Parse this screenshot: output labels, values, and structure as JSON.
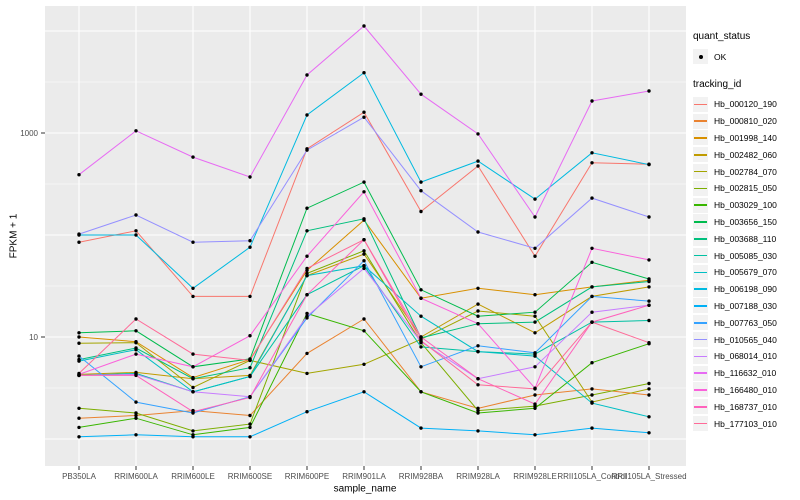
{
  "chart_data": {
    "type": "line",
    "title": "",
    "xlabel": "sample_name",
    "ylabel": "FPKM + 1",
    "y_scale": "log10",
    "y_ticks": [
      {
        "label": "1000",
        "value": 1000
      },
      {
        "label": "10",
        "value": 10
      }
    ],
    "ylim": [
      0.55,
      17000
    ],
    "grid": true,
    "legend_position": "right",
    "panel_color": "#EBEBEB",
    "grid_color": "#FFFFFF",
    "tick_color": "#333333",
    "tick_label_color": "#4D4D4D",
    "point_color": "#000000",
    "categories": [
      "PB350LA",
      "RRIM600LA",
      "RRIM600LE",
      "RRIM600SE",
      "RRIM600PE",
      "RRIM901LA",
      "RRIM928BA",
      "RRIM928LA",
      "RRIM928LE",
      "RRII105LA_Control",
      "RRII105LA_Stressed"
    ],
    "series": [
      {
        "name": "Hb_000120_190",
        "color": "#F8766D",
        "values": [
          85,
          110,
          25,
          25,
          700,
          1600,
          170,
          475,
          62,
          510,
          495
        ]
      },
      {
        "name": "Hb_000810_020",
        "color": "#EA8331",
        "values": [
          1.6,
          1.7,
          1.9,
          1.7,
          6.9,
          15,
          2.9,
          2.0,
          2.7,
          3.1,
          2.7
        ]
      },
      {
        "name": "Hb_001998_140",
        "color": "#D89000",
        "values": [
          10,
          9,
          4,
          6,
          45,
          140,
          24,
          30,
          26,
          31,
          36
        ]
      },
      {
        "name": "Hb_002482_060",
        "color": "#C09B00",
        "values": [
          4.3,
          4.5,
          3.9,
          4.2,
          40,
          65,
          10,
          21,
          11,
          25,
          31
        ]
      },
      {
        "name": "Hb_002784_070",
        "color": "#A3A500",
        "values": [
          8.7,
          8.8,
          3.2,
          5.9,
          4.4,
          5.4,
          9.5,
          18,
          16,
          2.3,
          3.1
        ]
      },
      {
        "name": "Hb_002815_050",
        "color": "#7CAE00",
        "values": [
          2.0,
          1.8,
          1.2,
          1.4,
          42,
          70,
          8.8,
          1.9,
          2.1,
          2.7,
          3.5
        ]
      },
      {
        "name": "Hb_003029_100",
        "color": "#39B600",
        "values": [
          1.3,
          1.6,
          1.1,
          1.3,
          17,
          11.5,
          2.9,
          1.8,
          2.0,
          5.6,
          8.6
        ]
      },
      {
        "name": "Hb_003656_150",
        "color": "#00BB4E",
        "values": [
          11,
          11.5,
          5.1,
          6.1,
          183,
          330,
          29,
          16,
          17.5,
          54,
          37
        ]
      },
      {
        "name": "Hb_003688_110",
        "color": "#00BF7D",
        "values": [
          6.0,
          7.8,
          3.9,
          5.0,
          110,
          144,
          9.8,
          13.5,
          14,
          31,
          35
        ]
      },
      {
        "name": "Hb_005085_030",
        "color": "#00C1A3",
        "values": [
          4.2,
          4.4,
          2.9,
          4.1,
          26,
          50,
          8.0,
          7.2,
          6.8,
          14,
          14.5
        ]
      },
      {
        "name": "Hb_005679_070",
        "color": "#00BFC4",
        "values": [
          5.8,
          7.5,
          2.9,
          4.1,
          40,
          50,
          16,
          7.2,
          6.5,
          2.25,
          1.65
        ]
      },
      {
        "name": "Hb_006198_090",
        "color": "#00BAE0",
        "values": [
          100,
          100,
          30,
          76,
          1500,
          3900,
          330,
          530,
          225,
          640,
          490
        ]
      },
      {
        "name": "Hb_007188_030",
        "color": "#00B0F6",
        "values": [
          1.05,
          1.1,
          1.05,
          1.05,
          1.85,
          2.9,
          1.28,
          1.2,
          1.1,
          1.28,
          1.15
        ]
      },
      {
        "name": "Hb_007763_050",
        "color": "#35A2FF",
        "values": [
          6.5,
          2.3,
          1.8,
          2.6,
          15.4,
          56,
          5.1,
          8.2,
          7.0,
          25,
          22.5
        ]
      },
      {
        "name": "Hb_010565_040",
        "color": "#9590FF",
        "values": [
          102,
          157,
          85,
          88,
          680,
          1430,
          272,
          107,
          74,
          230,
          150
        ]
      },
      {
        "name": "Hb_068014_010",
        "color": "#C77CFF",
        "values": [
          4.2,
          4.3,
          2.9,
          2.6,
          16,
          47,
          9.0,
          3.9,
          5.1,
          17.5,
          20.5
        ]
      },
      {
        "name": "Hb_116632_010",
        "color": "#E76BF3",
        "values": [
          390,
          1050,
          580,
          370,
          3700,
          11200,
          2400,
          980,
          150,
          2060,
          2580
        ]
      },
      {
        "name": "Hb_166480_010",
        "color": "#FA62DB",
        "values": [
          4.3,
          6.8,
          5.1,
          10.3,
          62,
          265,
          24,
          13.5,
          3.15,
          74,
          57
        ]
      },
      {
        "name": "Hb_168737_010",
        "color": "#FF62BC",
        "values": [
          4.2,
          4.2,
          1.85,
          2.55,
          26,
          90,
          10,
          3.9,
          2.2,
          14,
          20.5
        ]
      },
      {
        "name": "Hb_177103_010",
        "color": "#FF6A98",
        "values": [
          4.4,
          15,
          6.8,
          5.9,
          47,
          90,
          9.2,
          3.4,
          3.1,
          14,
          8.8
        ]
      }
    ]
  },
  "legend": {
    "position": "right",
    "quant_status": {
      "title": "quant_status",
      "entries": [
        {
          "label": "OK",
          "marker": "point",
          "color": "#000000"
        }
      ]
    },
    "tracking_id": {
      "title": "tracking_id"
    }
  }
}
